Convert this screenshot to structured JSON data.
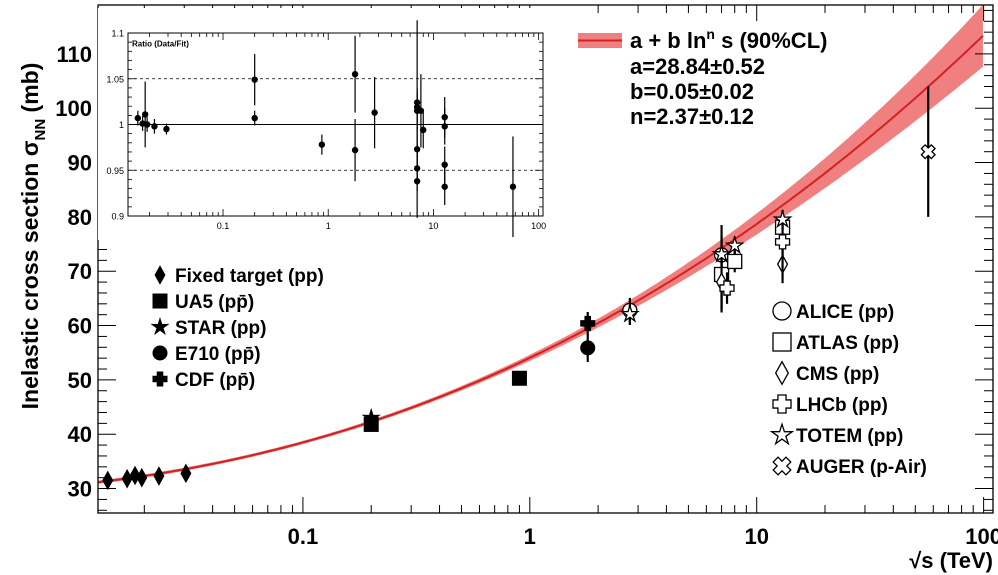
{
  "chart_data": {
    "type": "scatter",
    "title": "",
    "xlabel_root": "√",
    "xlabel": "s (TeV)",
    "ylabel": "Inelastic cross section σ",
    "ylabel_sub": "NN",
    "ylabel_unit": " (mb)",
    "xscale": "log",
    "xlim": [
      0.0125,
      110
    ],
    "ylim": [
      25.5,
      119
    ],
    "x_ticks": [
      {
        "value": 0.1,
        "label": "0.1"
      },
      {
        "value": 1,
        "label": "1"
      },
      {
        "value": 10,
        "label": "10"
      },
      {
        "value": 100,
        "label": "100"
      }
    ],
    "y_ticks": [
      {
        "value": 30,
        "label": "30"
      },
      {
        "value": 40,
        "label": "40"
      },
      {
        "value": 50,
        "label": "50"
      },
      {
        "value": 60,
        "label": "60"
      },
      {
        "value": 70,
        "label": "70"
      },
      {
        "value": 80,
        "label": "80"
      },
      {
        "value": 90,
        "label": "90"
      },
      {
        "value": 100,
        "label": "100"
      },
      {
        "value": 110,
        "label": "110"
      }
    ],
    "fit": {
      "a": 28.84,
      "b": 0.05,
      "n": 2.37,
      "band_frac": 0.07,
      "legend_main": "a + b ln",
      "legend_sup": "n",
      "legend_tail": " s (90%CL)",
      "params": [
        "a=28.84±0.52",
        "b=0.05±0.02",
        "n=2.37±0.12"
      ],
      "color": "#d42020",
      "band_color": "#f08080"
    },
    "series": [
      {
        "name": "Fixed target (pp)",
        "marker": "diamond",
        "filled": true,
        "points": [
          {
            "x": 0.0138,
            "y": 31.5,
            "err": 0.6
          },
          {
            "x": 0.0168,
            "y": 31.8,
            "err": 0.6
          },
          {
            "x": 0.0182,
            "y": 32.4,
            "err": 0.6
          },
          {
            "x": 0.0195,
            "y": 32.0,
            "err": 0.6
          },
          {
            "x": 0.0232,
            "y": 32.3,
            "err": 0.6
          },
          {
            "x": 0.0305,
            "y": 32.8,
            "err": 0.6
          }
        ]
      },
      {
        "name": "UA5 (pp̄)",
        "marker": "square",
        "filled": true,
        "points": [
          {
            "x": 0.2,
            "y": 41.8,
            "err": 1.0
          },
          {
            "x": 0.9,
            "y": 50.3,
            "err": 0.6
          }
        ]
      },
      {
        "name": "STAR (pp)",
        "marker": "star",
        "filled": true,
        "points": [
          {
            "x": 0.2,
            "y": 43.0,
            "err": 1.0
          }
        ]
      },
      {
        "name": "E710 (pp̄)",
        "marker": "circle",
        "filled": true,
        "points": [
          {
            "x": 1.8,
            "y": 55.9,
            "err": 2.6
          }
        ]
      },
      {
        "name": "CDF (pp̄)",
        "marker": "cross",
        "filled": true,
        "points": [
          {
            "x": 1.8,
            "y": 60.4,
            "err": 2.1
          }
        ]
      },
      {
        "name": "ALICE (pp)",
        "marker": "circle",
        "filled": false,
        "points": [
          {
            "x": 2.76,
            "y": 62.8,
            "err": 2.3
          },
          {
            "x": 7,
            "y": 73.0,
            "err": 5.5
          }
        ]
      },
      {
        "name": "ATLAS (pp)",
        "marker": "square",
        "filled": false,
        "points": [
          {
            "x": 7,
            "y": 69.4,
            "err": 7.0
          },
          {
            "x": 8,
            "y": 71.8,
            "err": 2.0
          },
          {
            "x": 13,
            "y": 78.1,
            "err": 2.9
          }
        ]
      },
      {
        "name": "CMS (pp)",
        "marker": "diamond",
        "filled": false,
        "points": [
          {
            "x": 7,
            "y": 68.0,
            "err": 5.0
          },
          {
            "x": 13,
            "y": 71.3,
            "err": 3.5
          }
        ]
      },
      {
        "name": "LHCb (pp)",
        "marker": "cross",
        "filled": false,
        "points": [
          {
            "x": 7.4,
            "y": 66.9,
            "err": 2.9
          },
          {
            "x": 13,
            "y": 75.4,
            "err": 5.4
          }
        ]
      },
      {
        "name": "TOTEM (pp)",
        "marker": "star",
        "filled": false,
        "points": [
          {
            "x": 2.76,
            "y": 62.1,
            "err": 2.0
          },
          {
            "x": 7,
            "y": 73.1,
            "err": 1.3
          },
          {
            "x": 8,
            "y": 74.7,
            "err": 1.7
          },
          {
            "x": 13,
            "y": 79.5,
            "err": 1.8
          }
        ]
      },
      {
        "name": "AUGER (p-Air)",
        "marker": "xcross",
        "filled": false,
        "points": [
          {
            "x": 57,
            "y": 92.0,
            "err": 12.0
          }
        ]
      }
    ],
    "legend_left": [
      "Fixed target (pp)",
      "UA5 (pp̄)",
      "STAR (pp)",
      "E710 (pp̄)",
      "CDF (pp̄)"
    ],
    "legend_right": [
      "ALICE (pp)",
      "ATLAS (pp)",
      "CMS (pp)",
      "LHCb (pp)",
      "TOTEM (pp)",
      "AUGER (p-Air)"
    ],
    "inset": {
      "title": "Ratio (Data/Fit)",
      "xscale": "log",
      "xlim": [
        0.0125,
        110
      ],
      "ylim": [
        0.9,
        1.1
      ],
      "x_ticks": [
        {
          "value": 0.1,
          "label": "0.1"
        },
        {
          "value": 1,
          "label": "1"
        },
        {
          "value": 10,
          "label": "10"
        },
        {
          "value": 100,
          "label": "100"
        }
      ],
      "y_ticks": [
        {
          "value": 0.9,
          "label": "0.9"
        },
        {
          "value": 0.95,
          "label": "0.95"
        },
        {
          "value": 1,
          "label": "1"
        },
        {
          "value": 1.05,
          "label": "1.05"
        },
        {
          "value": 1.1,
          "label": "1.1"
        }
      ],
      "dashed_levels": [
        0.95,
        1.05
      ],
      "solid_level": 1,
      "points": [
        {
          "x": 0.0155,
          "y": 1.007,
          "err": 0.008
        },
        {
          "x": 0.0172,
          "y": 1.001,
          "err": 0.008
        },
        {
          "x": 0.0182,
          "y": 1.011,
          "err": 0.036
        },
        {
          "x": 0.019,
          "y": 1.0,
          "err": 0.008
        },
        {
          "x": 0.0223,
          "y": 0.998,
          "err": 0.008
        },
        {
          "x": 0.029,
          "y": 0.995,
          "err": 0.006
        },
        {
          "x": 0.2,
          "y": 1.049,
          "err": 0.028
        },
        {
          "x": 0.2,
          "y": 1.007,
          "err": 0.008
        },
        {
          "x": 0.87,
          "y": 0.978,
          "err": 0.011
        },
        {
          "x": 1.8,
          "y": 0.972,
          "err": 0.034
        },
        {
          "x": 1.8,
          "y": 1.055,
          "err": 0.042
        },
        {
          "x": 2.76,
          "y": 1.013,
          "err": 0.039
        },
        {
          "x": 7,
          "y": 1.024,
          "err": 0.09
        },
        {
          "x": 7,
          "y": 1.019,
          "err": 0.02
        },
        {
          "x": 7,
          "y": 1.015,
          "err": 0.02
        },
        {
          "x": 7,
          "y": 0.973,
          "err": 0.025
        },
        {
          "x": 7,
          "y": 0.952,
          "err": 0.025
        },
        {
          "x": 7,
          "y": 0.938,
          "err": 0.04
        },
        {
          "x": 7.6,
          "y": 1.015,
          "err": 0.04
        },
        {
          "x": 8,
          "y": 0.994,
          "err": 0.02
        },
        {
          "x": 12.8,
          "y": 1.008,
          "err": 0.022
        },
        {
          "x": 12.8,
          "y": 0.998,
          "err": 0.02
        },
        {
          "x": 12.8,
          "y": 0.956,
          "err": 0.02
        },
        {
          "x": 12.8,
          "y": 0.932,
          "err": 0.02
        },
        {
          "x": 57,
          "y": 0.932,
          "err": 0.055
        }
      ]
    }
  }
}
